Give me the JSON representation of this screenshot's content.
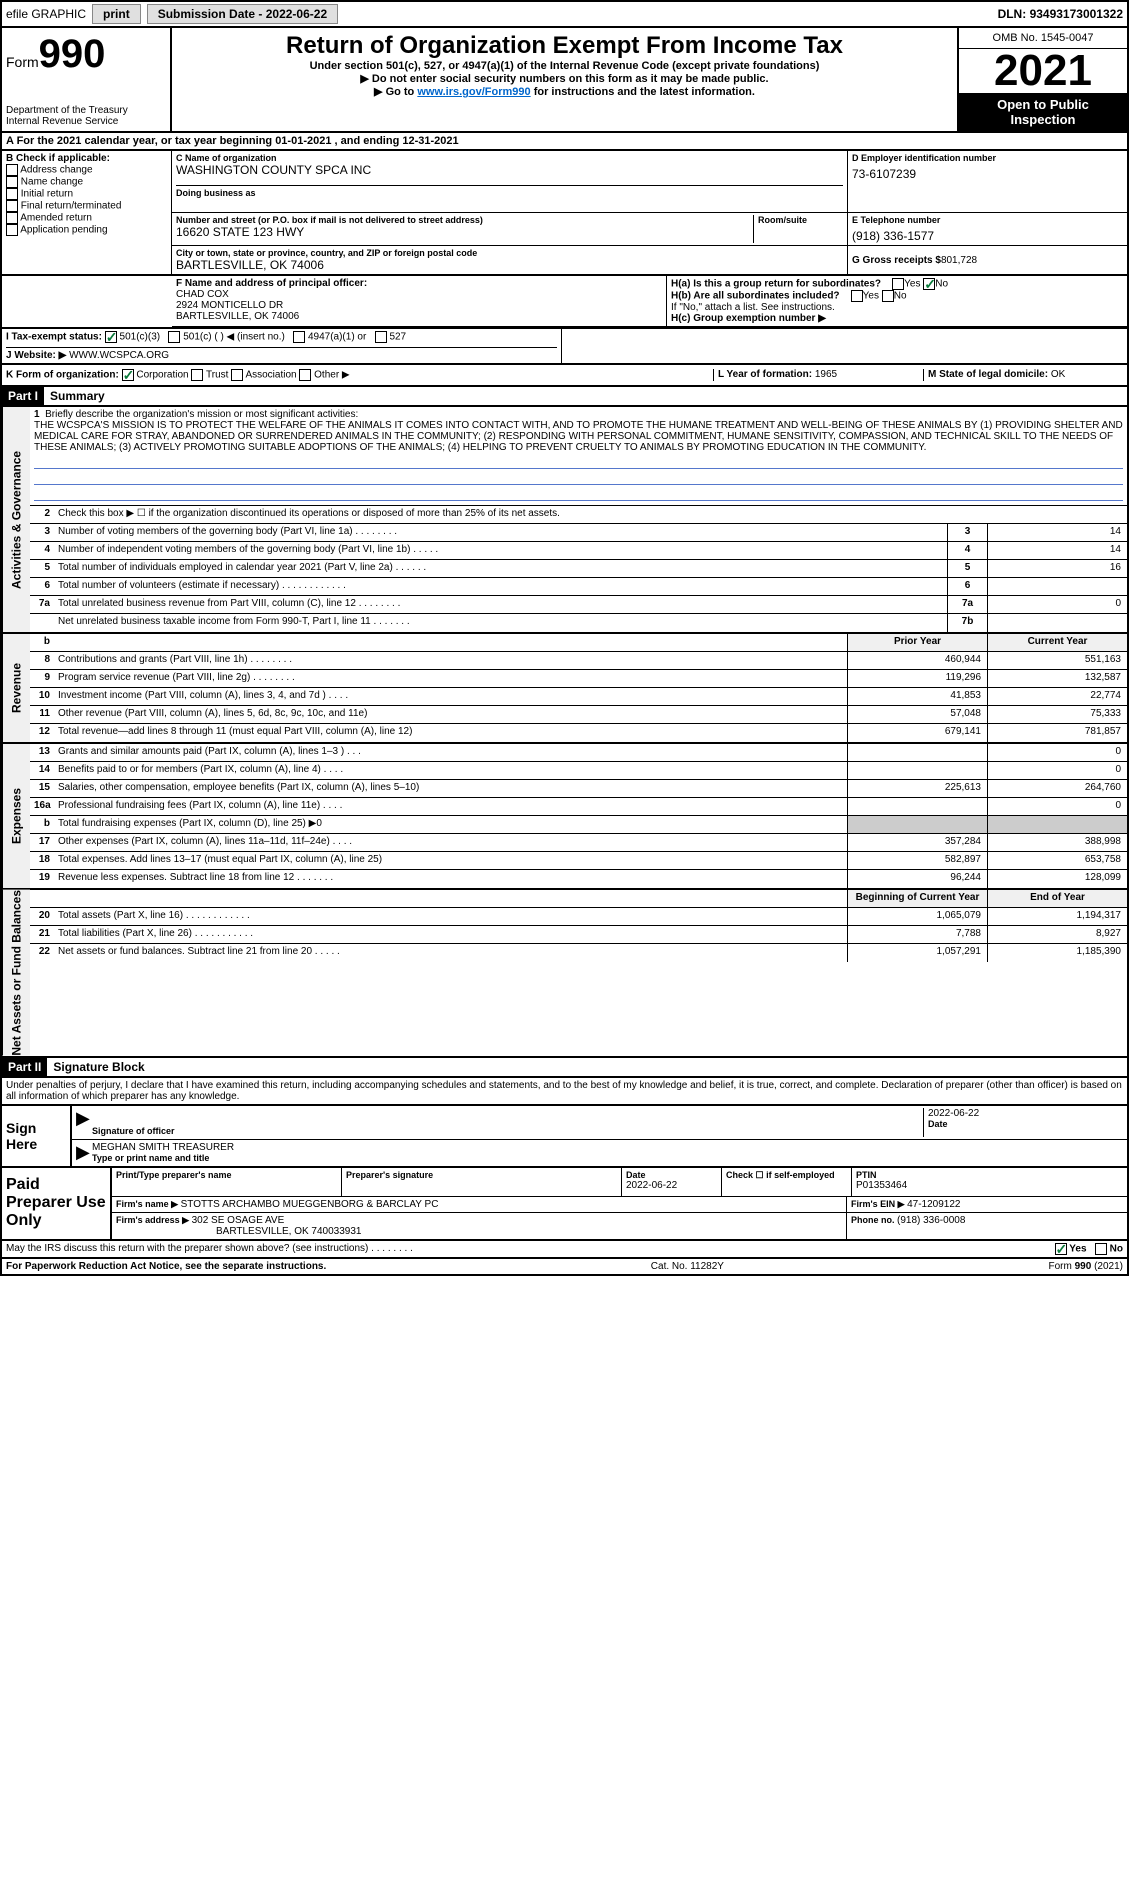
{
  "topbar": {
    "efile": "efile GRAPHIC",
    "print": "print",
    "submission_label": "Submission Date - ",
    "submission_date": "2022-06-22",
    "dln_label": "DLN: ",
    "dln": "93493173001322"
  },
  "header": {
    "form_label": "Form",
    "form_num": "990",
    "title": "Return of Organization Exempt From Income Tax",
    "subtitle1": "Under section 501(c), 527, or 4947(a)(1) of the Internal Revenue Code (except private foundations)",
    "subtitle2": "▶ Do not enter social security numbers on this form as it may be made public.",
    "subtitle3_pre": "▶ Go to ",
    "subtitle3_link": "www.irs.gov/Form990",
    "subtitle3_post": " for instructions and the latest information.",
    "dept": "Department of the Treasury",
    "irs": "Internal Revenue Service",
    "omb": "OMB No. 1545-0047",
    "year": "2021",
    "open_pub": "Open to Public Inspection"
  },
  "row_a": "A For the 2021 calendar year, or tax year beginning 01-01-2021   , and ending 12-31-2021",
  "col_b": {
    "label": "B Check if applicable:",
    "items": [
      "Address change",
      "Name change",
      "Initial return",
      "Final return/terminated",
      "Amended return",
      "Application pending"
    ]
  },
  "org": {
    "c_label": "C Name of organization",
    "c_name": "WASHINGTON COUNTY SPCA INC",
    "dba_label": "Doing business as",
    "addr_label": "Number and street (or P.O. box if mail is not delivered to street address)",
    "addr": "16620 STATE 123 HWY",
    "room_label": "Room/suite",
    "city_label": "City or town, state or province, country, and ZIP or foreign postal code",
    "city": "BARTLESVILLE, OK  74006",
    "d_label": "D Employer identification number",
    "d_val": "73-6107239",
    "e_label": "E Telephone number",
    "e_val": "(918) 336-1577",
    "g_label": "G Gross receipts $ ",
    "g_val": "801,728"
  },
  "row_f": {
    "f_label": "F  Name and address of principal officer:",
    "f_name": "CHAD COX",
    "f_addr1": "2924 MONTICELLO DR",
    "f_addr2": "BARTLESVILLE, OK  74006",
    "ha_label": "H(a)  Is this a group return for subordinates?",
    "ha_yes": "Yes",
    "ha_no": "No",
    "hb_label": "H(b)  Are all subordinates included?",
    "hb_yes": "Yes",
    "hb_no": "No",
    "hb_note": "If \"No,\" attach a list. See instructions.",
    "hc_label": "H(c)  Group exemption number ▶"
  },
  "row_i": {
    "i_label": "I  Tax-exempt status:",
    "i_501c3": "501(c)(3)",
    "i_501c": "501(c) (   ) ◀ (insert no.)",
    "i_4947": "4947(a)(1) or",
    "i_527": "527"
  },
  "row_j": {
    "j_label": "J  Website: ▶ ",
    "j_val": "WWW.WCSPCA.ORG"
  },
  "row_k": {
    "k_label": "K Form of organization:",
    "k_corp": "Corporation",
    "k_trust": "Trust",
    "k_assoc": "Association",
    "k_other": "Other ▶",
    "l_label": "L Year of formation: ",
    "l_val": "1965",
    "m_label": "M State of legal domicile: ",
    "m_val": "OK"
  },
  "part1": {
    "hdr": "Part I",
    "title": "Summary",
    "side1": "Activities & Governance",
    "side2": "Revenue",
    "side3": "Expenses",
    "side4": "Net Assets or Fund Balances",
    "line1_label": "Briefly describe the organization's mission or most significant activities:",
    "mission": "THE WCSPCA'S MISSION IS TO PROTECT THE WELFARE OF THE ANIMALS IT COMES INTO CONTACT WITH, AND TO PROMOTE THE HUMANE TREATMENT AND WELL-BEING OF THESE ANIMALS BY (1) PROVIDING SHELTER AND MEDICAL CARE FOR STRAY, ABANDONED OR SURRENDERED ANIMALS IN THE COMMUNITY; (2) RESPONDING WITH PERSONAL COMMITMENT, HUMANE SENSITIVITY, COMPASSION, AND TECHNICAL SKILL TO THE NEEDS OF THESE ANIMALS; (3) ACTIVELY PROMOTING SUITABLE ADOPTIONS OF THE ANIMALS; (4) HELPING TO PREVENT CRUELTY TO ANIMALS BY PROMOTING EDUCATION IN THE COMMUNITY.",
    "line2": "Check this box ▶ ☐ if the organization discontinued its operations or disposed of more than 25% of its net assets.",
    "lines_num": [
      {
        "n": "3",
        "t": "Number of voting members of the governing body (Part VI, line 1a)  .    .    .    .    .    .    .    .",
        "cn": "3",
        "v": "14"
      },
      {
        "n": "4",
        "t": "Number of independent voting members of the governing body (Part VI, line 1b)  .    .    .    .    .",
        "cn": "4",
        "v": "14"
      },
      {
        "n": "5",
        "t": "Total number of individuals employed in calendar year 2021 (Part V, line 2a)  .    .    .    .    .    .",
        "cn": "5",
        "v": "16"
      },
      {
        "n": "6",
        "t": "Total number of volunteers (estimate if necessary)  .    .    .    .    .    .    .    .    .    .    .    .",
        "cn": "6",
        "v": ""
      },
      {
        "n": "7a",
        "t": "Total unrelated business revenue from Part VIII, column (C), line 12  .    .    .    .    .    .    .    .",
        "cn": "7a",
        "v": "0"
      },
      {
        "n": "",
        "t": "Net unrelated business taxable income from Form 990-T, Part I, line 11  .    .    .    .    .    .    .",
        "cn": "7b",
        "v": ""
      }
    ],
    "col_prior": "Prior Year",
    "col_curr": "Current Year",
    "rev": [
      {
        "n": "8",
        "t": "Contributions and grants (Part VIII, line 1h)  .    .    .    .    .    .    .    .",
        "p": "460,944",
        "c": "551,163"
      },
      {
        "n": "9",
        "t": "Program service revenue (Part VIII, line 2g)  .    .    .    .    .    .    .    .",
        "p": "119,296",
        "c": "132,587"
      },
      {
        "n": "10",
        "t": "Investment income (Part VIII, column (A), lines 3, 4, and 7d )  .    .    .    .",
        "p": "41,853",
        "c": "22,774"
      },
      {
        "n": "11",
        "t": "Other revenue (Part VIII, column (A), lines 5, 6d, 8c, 9c, 10c, and 11e)",
        "p": "57,048",
        "c": "75,333"
      },
      {
        "n": "12",
        "t": "Total revenue—add lines 8 through 11 (must equal Part VIII, column (A), line 12)",
        "p": "679,141",
        "c": "781,857"
      }
    ],
    "exp": [
      {
        "n": "13",
        "t": "Grants and similar amounts paid (Part IX, column (A), lines 1–3 )  .    .    .",
        "p": "",
        "c": "0"
      },
      {
        "n": "14",
        "t": "Benefits paid to or for members (Part IX, column (A), line 4)  .    .    .    .",
        "p": "",
        "c": "0"
      },
      {
        "n": "15",
        "t": "Salaries, other compensation, employee benefits (Part IX, column (A), lines 5–10)",
        "p": "225,613",
        "c": "264,760"
      },
      {
        "n": "16a",
        "t": "Professional fundraising fees (Part IX, column (A), line 11e)  .    .    .    .",
        "p": "",
        "c": "0"
      },
      {
        "n": "b",
        "t": "Total fundraising expenses (Part IX, column (D), line 25) ▶0",
        "p": "GRAY",
        "c": "GRAY"
      },
      {
        "n": "17",
        "t": "Other expenses (Part IX, column (A), lines 11a–11d, 11f–24e)  .    .    .    .",
        "p": "357,284",
        "c": "388,998"
      },
      {
        "n": "18",
        "t": "Total expenses. Add lines 13–17 (must equal Part IX, column (A), line 25)",
        "p": "582,897",
        "c": "653,758"
      },
      {
        "n": "19",
        "t": "Revenue less expenses. Subtract line 18 from line 12  .    .    .    .    .    .    .",
        "p": "96,244",
        "c": "128,099"
      }
    ],
    "col_begin": "Beginning of Current Year",
    "col_end": "End of Year",
    "net": [
      {
        "n": "20",
        "t": "Total assets (Part X, line 16)  .    .    .    .    .    .    .    .    .    .    .    .",
        "p": "1,065,079",
        "c": "1,194,317"
      },
      {
        "n": "21",
        "t": "Total liabilities (Part X, line 26)  .    .    .    .    .    .    .    .    .    .    .",
        "p": "7,788",
        "c": "8,927"
      },
      {
        "n": "22",
        "t": "Net assets or fund balances. Subtract line 21 from line 20  .    .    .    .    .",
        "p": "1,057,291",
        "c": "1,185,390"
      }
    ]
  },
  "part2": {
    "hdr": "Part II",
    "title": "Signature Block",
    "penalty": "Under penalties of perjury, I declare that I have examined this return, including accompanying schedules and statements, and to the best of my knowledge and belief, it is true, correct, and complete. Declaration of preparer (other than officer) is based on all information of which preparer has any knowledge."
  },
  "sign": {
    "left": "Sign Here",
    "sig_label": "Signature of officer",
    "date_label": "Date",
    "date_val": "2022-06-22",
    "name": "MEGHAN SMITH  TREASURER",
    "name_label": "Type or print name and title"
  },
  "paid": {
    "left": "Paid Preparer Use Only",
    "h1": "Print/Type preparer's name",
    "h2": "Preparer's signature",
    "h3": "Date",
    "h3v": "2022-06-22",
    "h4": "Check ☐ if self-employed",
    "h5": "PTIN",
    "h5v": "P01353464",
    "firm_label": "Firm's name    ▶ ",
    "firm": "STOTTS ARCHAMBO MUEGGENBORG & BARCLAY PC",
    "ein_label": "Firm's EIN ▶ ",
    "ein": "47-1209122",
    "addr_label": "Firm's address ▶ ",
    "addr1": "302 SE OSAGE AVE",
    "addr2": "BARTLESVILLE, OK  740033931",
    "phone_label": "Phone no. ",
    "phone": "(918) 336-0008"
  },
  "footer": {
    "discuss": "May the IRS discuss this return with the preparer shown above? (see instructions)  .    .    .    .    .    .    .    .",
    "yes": "Yes",
    "no": "No",
    "paperwork": "For Paperwork Reduction Act Notice, see the separate instructions.",
    "cat": "Cat. No. 11282Y",
    "form": "Form 990 (2021)"
  }
}
